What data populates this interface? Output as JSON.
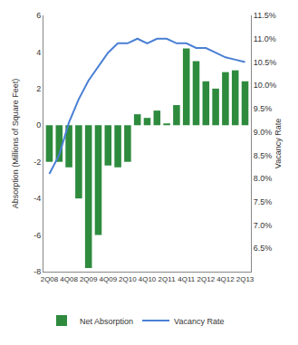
{
  "chart_data": {
    "type": "bar",
    "categories": [
      "2Q08",
      null,
      "4Q08",
      null,
      "2Q09",
      null,
      "4Q09",
      null,
      "2Q10",
      null,
      "4Q10",
      null,
      "2Q11",
      null,
      "4Q11",
      null,
      "2Q12",
      null,
      "4Q12",
      null,
      "2Q13"
    ],
    "series": [
      {
        "name": "Net Absorption",
        "type": "bar",
        "color": "#2e8b3e",
        "values": [
          -2.0,
          -2.0,
          -2.3,
          -4.0,
          -7.8,
          -6.0,
          -2.2,
          -2.3,
          -2.0,
          0.6,
          0.4,
          0.8,
          0.1,
          1.1,
          4.2,
          3.5,
          2.4,
          2.0,
          2.9,
          3.0,
          2.4
        ]
      },
      {
        "name": "Vacancy Rate",
        "type": "line",
        "axis": "y2",
        "color": "#4a7fd4",
        "values": [
          8.1,
          8.5,
          9.2,
          9.7,
          10.1,
          10.4,
          10.7,
          10.9,
          10.9,
          11.0,
          10.9,
          11.0,
          11.0,
          10.9,
          10.9,
          10.8,
          10.8,
          10.7,
          10.6,
          10.55,
          10.5
        ]
      }
    ],
    "y_label": "Absorption (Millions of Square Feet)",
    "y2_label": "Vacancy Rate",
    "ylim": [
      -8,
      6
    ],
    "yticks": [
      -8,
      -6,
      -4,
      -2,
      0,
      2,
      4,
      6
    ],
    "y2lim": [
      6,
      11.5
    ],
    "y2ticks": [
      {
        "value": 6.5,
        "label": "6.5%"
      },
      {
        "value": 7.0,
        "label": "7.0%"
      },
      {
        "value": 7.5,
        "label": "7.5%"
      },
      {
        "value": 8.0,
        "label": "8.0%"
      },
      {
        "value": 8.5,
        "label": "8.5%"
      },
      {
        "value": 9.0,
        "label": "9.0%"
      },
      {
        "value": 9.5,
        "label": "9.5%"
      },
      {
        "value": 10.0,
        "label": "10.0%"
      },
      {
        "value": 10.5,
        "label": "10.5%"
      },
      {
        "value": 11.0,
        "label": "11.0%"
      },
      {
        "value": 11.5,
        "label": "11.5%"
      }
    ],
    "legend": "bottom",
    "grid": false
  }
}
